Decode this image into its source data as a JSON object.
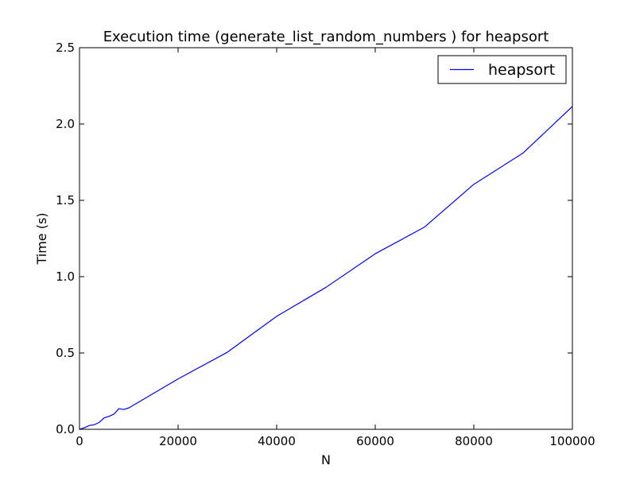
{
  "chart_data": {
    "type": "line",
    "title": "Execution time (generate_list_random_numbers ) for heapsort",
    "xlabel": "N",
    "ylabel": "Time (s)",
    "xlim": [
      0,
      100000
    ],
    "ylim": [
      0,
      2.5
    ],
    "xticks": [
      0,
      20000,
      40000,
      60000,
      80000,
      100000
    ],
    "xtick_labels": [
      "0",
      "20000",
      "40000",
      "60000",
      "80000",
      "100000"
    ],
    "yticks": [
      0,
      0.5,
      1.0,
      1.5,
      2.0,
      2.5
    ],
    "ytick_labels": [
      "0.0",
      "0.5",
      "1.0",
      "1.5",
      "2.0",
      "2.5"
    ],
    "grid": false,
    "legend_position": "top-right",
    "series": [
      {
        "name": "heapsort",
        "color": "#0000ff",
        "x": [
          0,
          1000,
          2000,
          3000,
          4000,
          5000,
          6000,
          7000,
          8000,
          9000,
          10000,
          20000,
          30000,
          40000,
          50000,
          60000,
          70000,
          80000,
          90000,
          100000
        ],
        "y": [
          0.0,
          0.01,
          0.025,
          0.03,
          0.045,
          0.075,
          0.085,
          0.1,
          0.135,
          0.13,
          0.14,
          0.33,
          0.505,
          0.74,
          0.93,
          1.15,
          1.325,
          1.605,
          1.81,
          2.115
        ]
      }
    ]
  }
}
